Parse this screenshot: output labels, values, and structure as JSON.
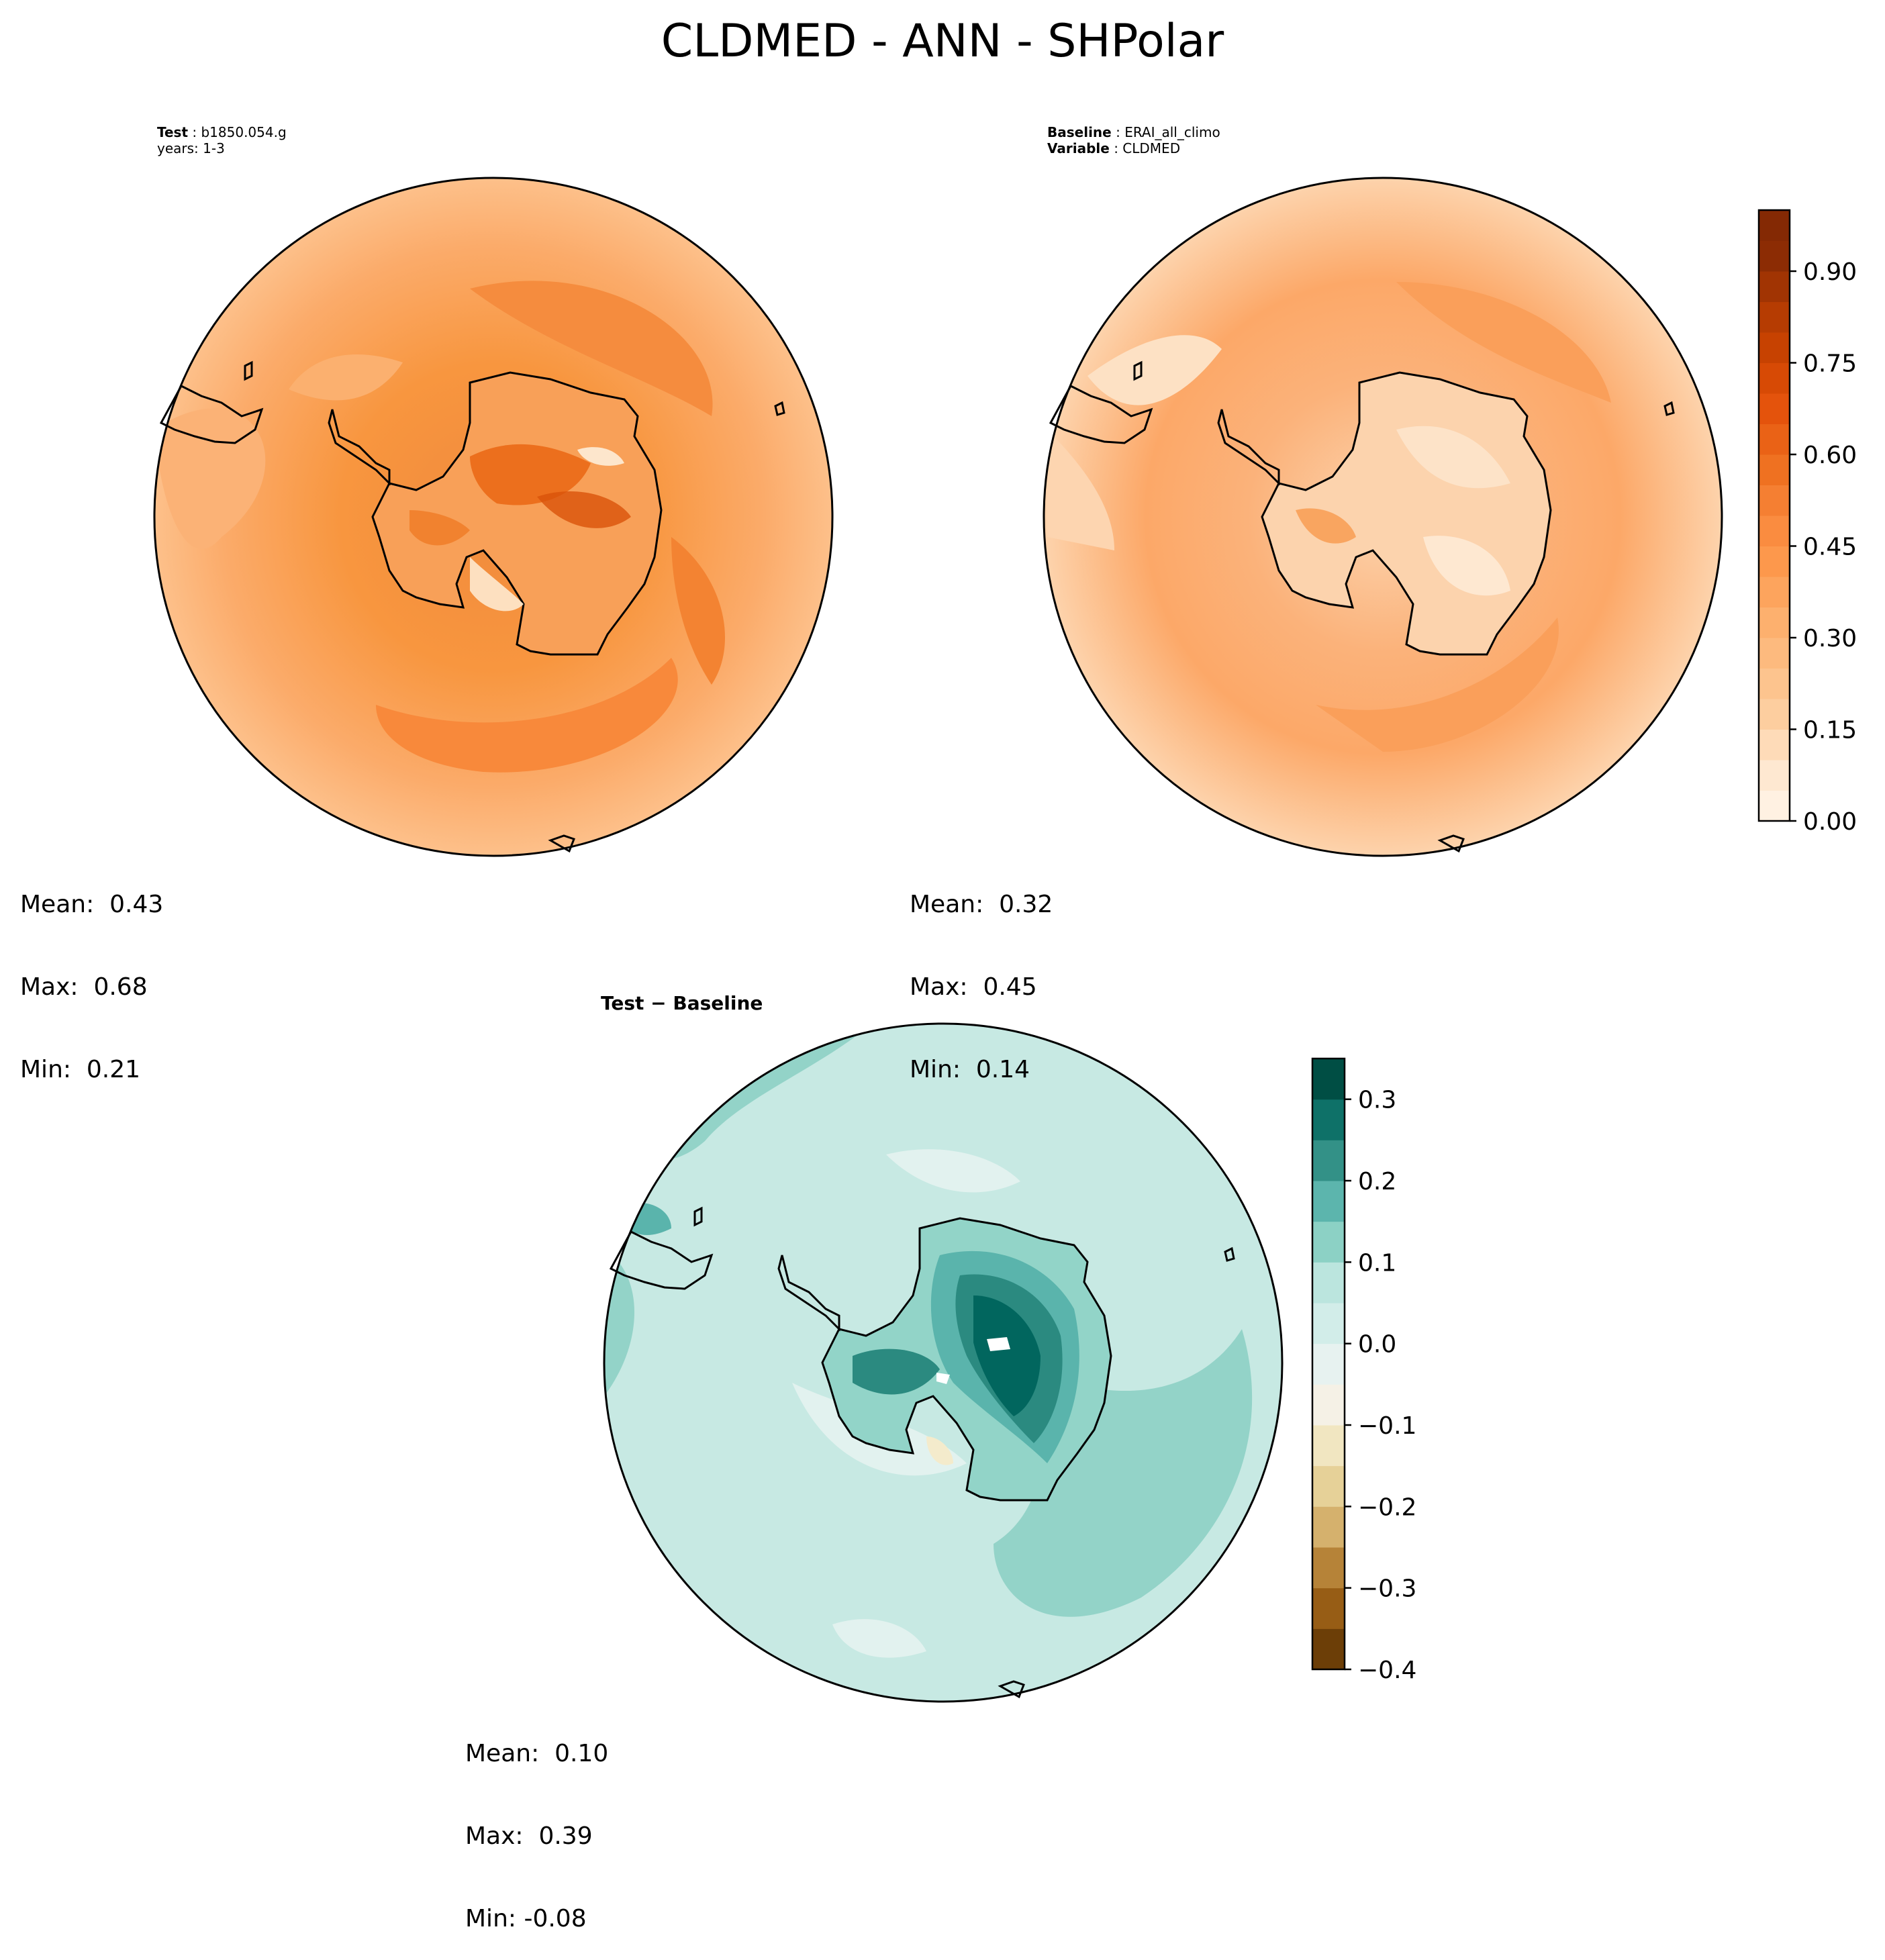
{
  "title": "CLDMED - ANN - SHPolar",
  "test_panel": {
    "label_key": "Test",
    "label_value": "b1850.054.g",
    "years": "years: 1-3",
    "stats": {
      "mean": "Mean:  0.43",
      "max": "Max:  0.68",
      "min": "Min:  0.21"
    }
  },
  "baseline_panel": {
    "label_key": "Baseline",
    "label_value": "ERAI_all_climo",
    "variable_key": "Variable",
    "variable_value": "CLDMED",
    "stats": {
      "mean": "Mean:  0.32",
      "max": "Max:  0.45",
      "min": "Min:  0.14"
    }
  },
  "diff_panel": {
    "title": "Test − Baseline",
    "stats": {
      "mean": "Mean:  0.10",
      "max": "Max:  0.39",
      "min": "Min: -0.08"
    }
  },
  "colors": {
    "oranges": [
      "#fff5eb",
      "#fee6ce",
      "#fdd0a2",
      "#fdbf86",
      "#fdae6b",
      "#fd9a4e",
      "#f8863a",
      "#ee6f1e",
      "#e6550d",
      "#d04501",
      "#b33b02",
      "#8e2d04",
      "#7f2704"
    ],
    "brbg": [
      "#543005",
      "#8c510a",
      "#b07a2e",
      "#d4b06b",
      "#e8d59d",
      "#f4ebcc",
      "#f5f5f5",
      "#d9efeb",
      "#c7eae5",
      "#92d4c8",
      "#5ab4ac",
      "#2b8a80",
      "#01665e",
      "#003c30"
    ]
  },
  "chart_data": [
    {
      "type": "heatmap",
      "name": "Test",
      "projection": "South Polar Stereographic",
      "variable": "CLDMED",
      "mean": 0.43,
      "max": 0.68,
      "min": 0.21,
      "colorbar": {
        "ticks": [
          "0.00",
          "0.15",
          "0.30",
          "0.45",
          "0.60",
          "0.75",
          "0.90"
        ],
        "range": [
          0.0,
          1.0
        ],
        "levels": 20
      }
    },
    {
      "type": "heatmap",
      "name": "Baseline",
      "projection": "South Polar Stereographic",
      "variable": "CLDMED",
      "mean": 0.32,
      "max": 0.45,
      "min": 0.14,
      "colorbar": {
        "ticks": [
          "0.00",
          "0.15",
          "0.30",
          "0.45",
          "0.60",
          "0.75",
          "0.90"
        ],
        "range": [
          0.0,
          1.0
        ],
        "levels": 20
      }
    },
    {
      "type": "heatmap",
      "name": "Test − Baseline",
      "projection": "South Polar Stereographic",
      "variable": "CLDMED",
      "mean": 0.1,
      "max": 0.39,
      "min": -0.08,
      "colorbar": {
        "ticks": [
          "0.3",
          "0.2",
          "0.1",
          "0.0",
          "−0.1",
          "−0.2",
          "−0.3",
          "−0.4"
        ],
        "range": [
          -0.4,
          0.35
        ],
        "levels": 15
      }
    }
  ]
}
